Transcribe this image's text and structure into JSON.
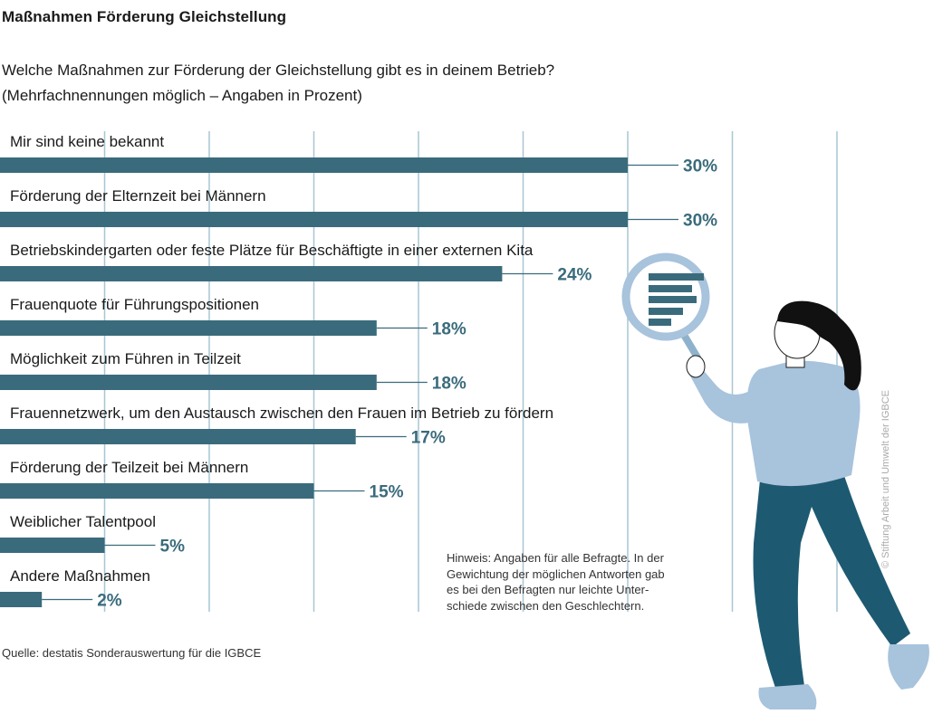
{
  "title": "Maßnahmen Förderung Gleichstellung",
  "question": {
    "line1": "Welche Maßnahmen zur Förderung der Gleichstellung gibt es in deinem Betrieb?",
    "line2": "(Mehrfachnennungen möglich – Angaben in Prozent)"
  },
  "note": {
    "lines": [
      "Hinweis: Angaben für alle Befragte. In der",
      "Gewichtung der möglichen Antworten gab",
      "es bei den Befragten nur leichte Unter-",
      "schiede zwischen den Geschlechtern."
    ]
  },
  "source": "Quelle: destatis Sonderauswertung für die IGBCE",
  "credit": "© Stiftung Arbeit und Umwelt der IGBCE",
  "colors": {
    "bar": "#3a6b7c",
    "grid": "#a9c6d4",
    "figure_top": "#a8c3dc",
    "figure_pants": "#1d5a72",
    "hair": "#111111"
  },
  "chart_data": {
    "type": "bar",
    "orientation": "horizontal",
    "unit": "%",
    "categories": [
      "Mir sind keine bekannt",
      "Förderung der Elternzeit bei Männern",
      "Betriebskindergarten oder feste Plätze für Beschäftigte in einer externen Kita",
      "Frauenquote für Führungspositionen",
      "Möglichkeit zum Führen in Teilzeit",
      "Frauennetzwerk, um den Austausch zwischen den Frauen im Betrieb zu fördern",
      "Förderung der Teilzeit bei Männern",
      "Weiblicher Talentpool",
      "Andere Maßnahmen"
    ],
    "values": [
      30,
      30,
      24,
      18,
      18,
      17,
      15,
      5,
      2
    ],
    "value_labels": [
      "30%",
      "30%",
      "24%",
      "18%",
      "18%",
      "17%",
      "15%",
      "5%",
      "2%"
    ],
    "xlim": [
      0,
      40
    ],
    "gridlines": [
      5,
      10,
      15,
      20,
      25,
      30,
      35,
      40
    ],
    "grid": true
  }
}
